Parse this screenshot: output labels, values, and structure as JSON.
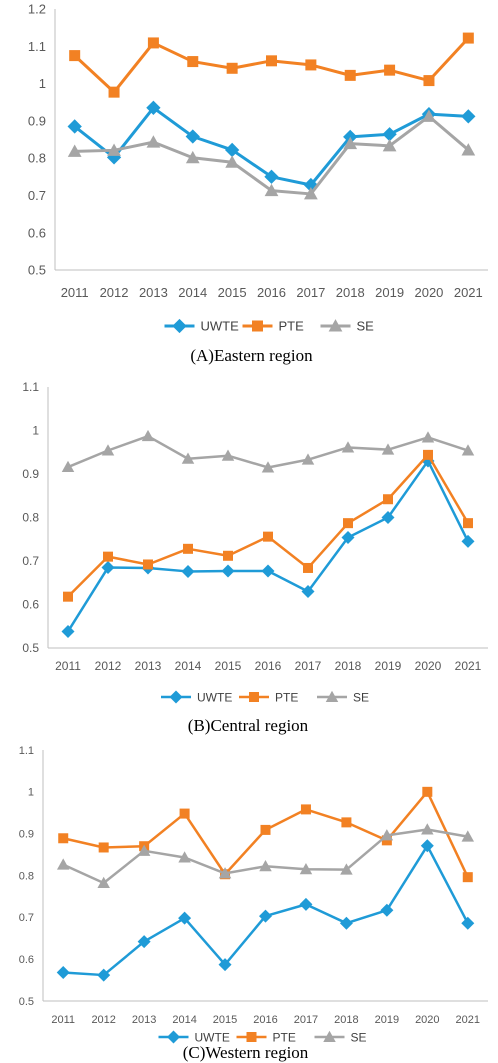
{
  "chart_data": [
    {
      "type": "line",
      "caption": "(A)Eastern region",
      "x": [
        "2011",
        "2012",
        "2013",
        "2014",
        "2015",
        "2016",
        "2017",
        "2018",
        "2019",
        "2020",
        "2021"
      ],
      "ylim": [
        0.5,
        1.2
      ],
      "yticks": [
        "0.5",
        "0.6",
        "0.7",
        "0.8",
        "0.9",
        "1",
        "1.1",
        "1.2"
      ],
      "grid": false,
      "legend": "bottom",
      "series": [
        {
          "name": "UWTE",
          "color": "#1f9bd7",
          "marker": "diamond",
          "values": [
            0.885,
            0.802,
            0.935,
            0.858,
            0.822,
            0.75,
            0.728,
            0.857,
            0.864,
            0.918,
            0.912
          ]
        },
        {
          "name": "PTE",
          "color": "#f28123",
          "marker": "square",
          "values": [
            1.075,
            0.977,
            1.109,
            1.059,
            1.041,
            1.061,
            1.05,
            1.022,
            1.036,
            1.008,
            1.122
          ]
        },
        {
          "name": "SE",
          "color": "#a5a5a5",
          "marker": "triangle",
          "values": [
            0.818,
            0.821,
            0.843,
            0.801,
            0.789,
            0.713,
            0.704,
            0.839,
            0.833,
            0.912,
            0.822
          ]
        }
      ]
    },
    {
      "type": "line",
      "caption": "(B)Central region",
      "x": [
        "2011",
        "2012",
        "2013",
        "2014",
        "2015",
        "2016",
        "2017",
        "2018",
        "2019",
        "2020",
        "2021"
      ],
      "ylim": [
        0.5,
        1.1
      ],
      "yticks": [
        "0.5",
        "0.6",
        "0.7",
        "0.8",
        "0.9",
        "1",
        "1.1"
      ],
      "grid": false,
      "legend": "bottom",
      "series": [
        {
          "name": "UWTE",
          "color": "#1f9bd7",
          "marker": "diamond",
          "values": [
            0.538,
            0.685,
            0.684,
            0.676,
            0.677,
            0.677,
            0.63,
            0.754,
            0.8,
            0.93,
            0.745
          ]
        },
        {
          "name": "PTE",
          "color": "#f28123",
          "marker": "square",
          "values": [
            0.618,
            0.71,
            0.692,
            0.728,
            0.712,
            0.756,
            0.684,
            0.787,
            0.842,
            0.944,
            0.787
          ]
        },
        {
          "name": "SE",
          "color": "#a5a5a5",
          "marker": "triangle",
          "values": [
            0.916,
            0.954,
            0.987,
            0.935,
            0.942,
            0.915,
            0.933,
            0.961,
            0.956,
            0.984,
            0.954
          ]
        }
      ]
    },
    {
      "type": "line",
      "caption": "(C)Western region",
      "x": [
        "2011",
        "2012",
        "2013",
        "2014",
        "2015",
        "2016",
        "2017",
        "2018",
        "2019",
        "2020",
        "2021"
      ],
      "ylim": [
        0.5,
        1.1
      ],
      "yticks": [
        "0.5",
        "0.6",
        "0.7",
        "0.8",
        "0.9",
        "1",
        "1.1"
      ],
      "grid": false,
      "legend": "bottom",
      "series": [
        {
          "name": "UWTE",
          "color": "#1f9bd7",
          "marker": "diamond",
          "values": [
            0.568,
            0.562,
            0.642,
            0.698,
            0.587,
            0.703,
            0.731,
            0.686,
            0.717,
            0.871,
            0.686
          ]
        },
        {
          "name": "PTE",
          "color": "#f28123",
          "marker": "square",
          "values": [
            0.889,
            0.867,
            0.87,
            0.948,
            0.803,
            0.909,
            0.958,
            0.927,
            0.884,
            1.0,
            0.796
          ]
        },
        {
          "name": "SE",
          "color": "#a5a5a5",
          "marker": "triangle",
          "values": [
            0.826,
            0.782,
            0.859,
            0.843,
            0.805,
            0.822,
            0.815,
            0.814,
            0.896,
            0.91,
            0.893
          ]
        }
      ]
    }
  ]
}
